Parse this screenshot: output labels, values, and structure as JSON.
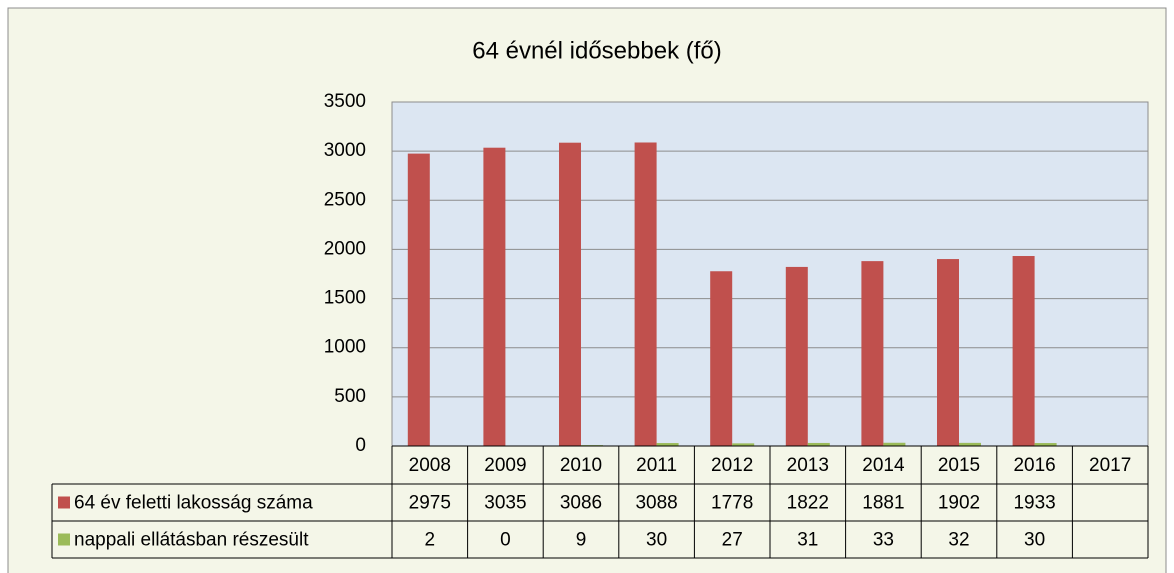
{
  "chart_data": {
    "type": "bar",
    "title": "64 évnél idősebbek (fő)",
    "categories": [
      "2008",
      "2009",
      "2010",
      "2011",
      "2012",
      "2013",
      "2014",
      "2015",
      "2016",
      "2017"
    ],
    "series": [
      {
        "name": "64 év feletti lakosság száma",
        "color": "#c0504d",
        "values": [
          2975,
          3035,
          3086,
          3088,
          1778,
          1822,
          1881,
          1902,
          1933,
          null
        ]
      },
      {
        "name": "nappali ellátásban részesült",
        "color": "#9bbb59",
        "values": [
          2,
          0,
          9,
          30,
          27,
          31,
          33,
          32,
          30,
          null
        ]
      }
    ],
    "ylim": [
      0,
      3500
    ],
    "yticks": [
      0,
      500,
      1000,
      1500,
      2000,
      2500,
      3000,
      3500
    ],
    "grid": true
  }
}
